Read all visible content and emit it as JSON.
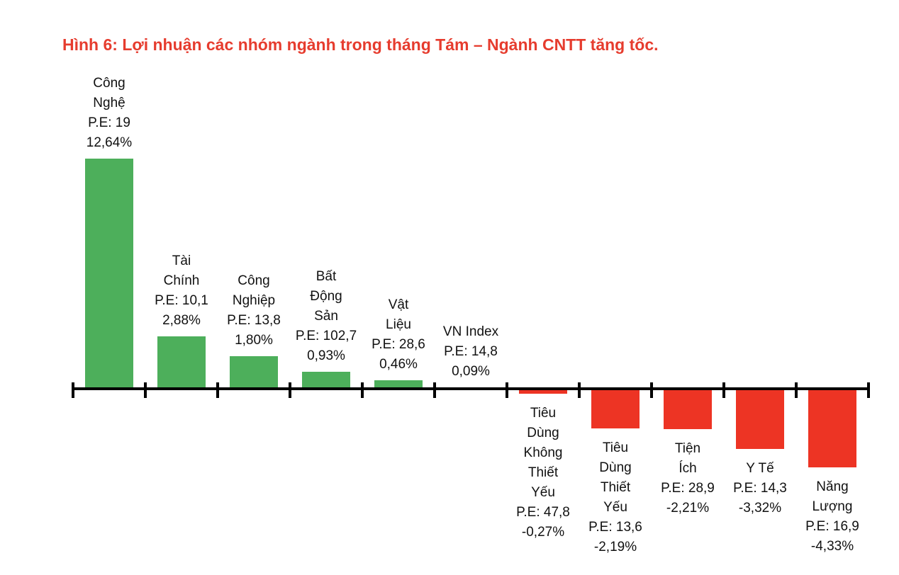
{
  "chart_data": {
    "type": "bar",
    "title": "Hình 6: Lợi nhuận các nhóm ngành trong tháng Tám – Ngành CNTT tăng tốc.",
    "categories": [
      "Công Nghệ",
      "Tài Chính",
      "Công Nghiệp",
      "Bất Động Sản",
      "Vật Liệu",
      "VN Index",
      "Tiêu Dùng Không Thiết Yếu",
      "Tiêu Dùng Thiết Yếu",
      "Tiện Ích",
      "Y Tế",
      "Năng Lượng"
    ],
    "values": [
      12.64,
      2.88,
      1.8,
      0.93,
      0.46,
      0.09,
      -0.27,
      -2.19,
      -2.21,
      -3.32,
      -4.33
    ],
    "pe_ratios": [
      19,
      10.1,
      13.8,
      102.7,
      28.6,
      14.8,
      47.8,
      13.6,
      28.9,
      14.3,
      16.9
    ],
    "bar_label_lines": [
      [
        "Công",
        "Nghệ",
        "P.E: 19",
        "12,64%"
      ],
      [
        "Tài",
        "Chính",
        "P.E: 10,1",
        "2,88%"
      ],
      [
        "Công",
        "Nghiệp",
        "P.E: 13,8",
        "1,80%"
      ],
      [
        "Bất",
        "Động",
        "Sản",
        "P.E: 102,7",
        "0,93%"
      ],
      [
        "Vật",
        "Liệu",
        "P.E: 28,6",
        "0,46%"
      ],
      [
        "VN Index",
        "P.E: 14,8",
        "0,09%"
      ],
      [
        "Tiêu",
        "Dùng",
        "Không",
        "Thiết",
        "Yếu",
        "P.E: 47,8",
        "-0,27%"
      ],
      [
        "Tiêu",
        "Dùng",
        "Thiết",
        "Yếu",
        "P.E: 13,6",
        "-2,19%"
      ],
      [
        "Tiện",
        "Ích",
        "P.E: 28,9",
        "-2,21%"
      ],
      [
        "Y Tế",
        "P.E: 14,3",
        "-3,32%"
      ],
      [
        "Năng",
        "Lượng",
        "P.E: 16,9",
        "-4,33%"
      ]
    ],
    "xlabel": "",
    "ylabel": "",
    "ylim": [
      -4.33,
      12.64
    ],
    "grid": false,
    "legend": false,
    "axis_style": "horizontal baseline with outward tick marks between categories"
  },
  "colors": {
    "positive_bar": "#4daf5b",
    "negative_bar": "#ed3424",
    "title_text": "#e63c2e",
    "label_text": "#111111",
    "axis": "#000000"
  }
}
